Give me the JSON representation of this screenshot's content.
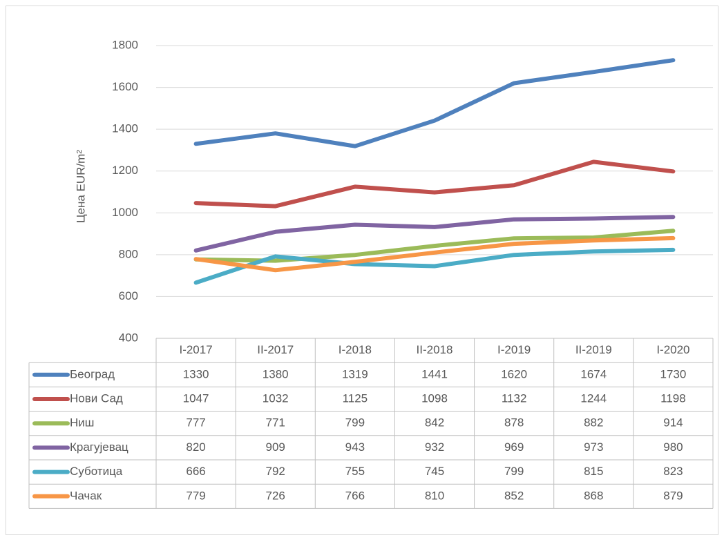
{
  "chart_data": {
    "type": "line",
    "y_label": "Цена EUR/m²",
    "categories": [
      "I-2017",
      "II-2017",
      "I-2018",
      "II-2018",
      "I-2019",
      "II-2019",
      "I-2020"
    ],
    "series": [
      {
        "name": "Београд",
        "color": "#4f81bd",
        "values": [
          1330,
          1380,
          1319,
          1441,
          1620,
          1674,
          1730
        ]
      },
      {
        "name": "Нови Сад",
        "color": "#c0504d",
        "values": [
          1047,
          1032,
          1125,
          1098,
          1132,
          1244,
          1198
        ]
      },
      {
        "name": "Ниш",
        "color": "#9bbb59",
        "values": [
          777,
          771,
          799,
          842,
          878,
          882,
          914
        ]
      },
      {
        "name": "Крагујевац",
        "color": "#8064a2",
        "values": [
          820,
          909,
          943,
          932,
          969,
          973,
          980
        ]
      },
      {
        "name": "Суботица",
        "color": "#4bacc6",
        "values": [
          666,
          792,
          755,
          745,
          799,
          815,
          823
        ]
      },
      {
        "name": "Чачак",
        "color": "#f79646",
        "values": [
          779,
          726,
          766,
          810,
          852,
          868,
          879
        ]
      }
    ],
    "ylim": [
      400,
      1800
    ],
    "yticks": [
      400,
      600,
      800,
      1000,
      1200,
      1400,
      1600,
      1800
    ],
    "grid": true
  }
}
